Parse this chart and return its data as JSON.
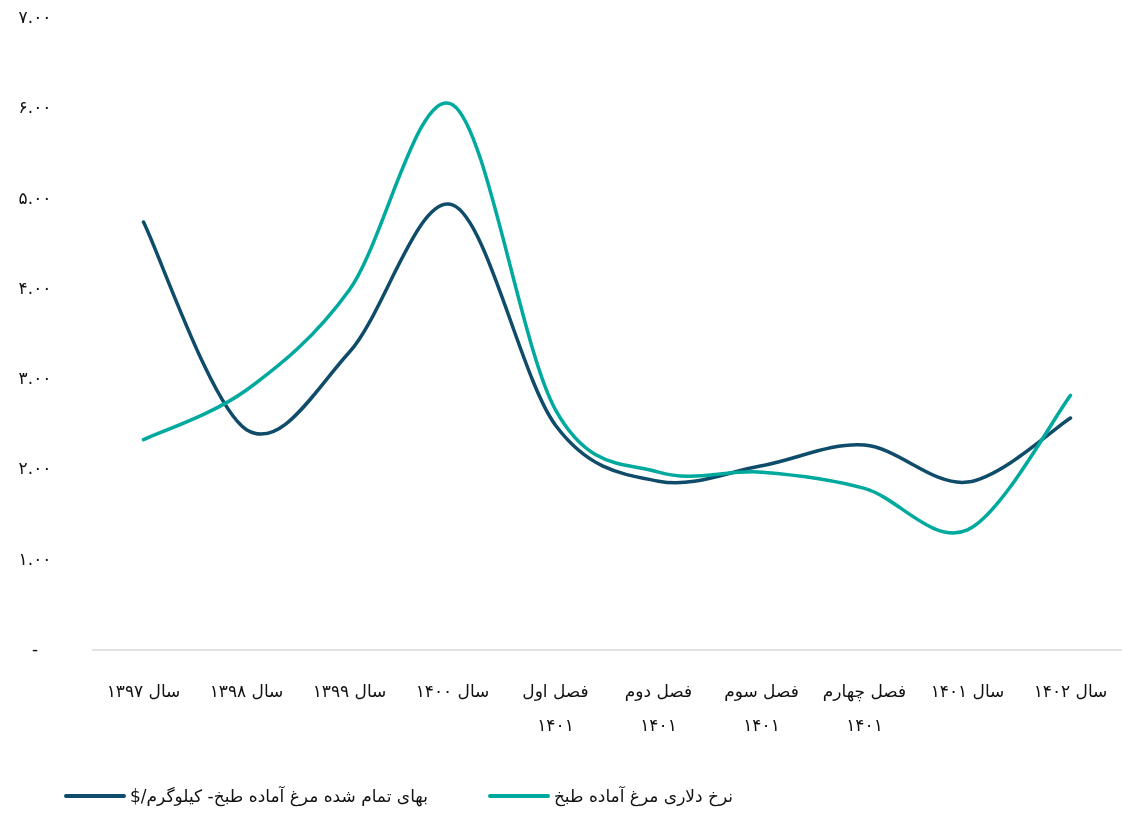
{
  "chart_data": {
    "type": "line",
    "categories": [
      "سال ۱۳۹۷",
      "سال ۱۳۹۸",
      "سال ۱۳۹۹",
      "سال ۱۴۰۰",
      "فصل اول ۱۴۰۱",
      "فصل دوم ۱۴۰۱",
      "فصل سوم ۱۴۰۱",
      "فصل چهارم ۱۴۰۱",
      "سال ۱۴۰۱",
      "سال ۱۴۰۲"
    ],
    "series": [
      {
        "name": "بهای تمام شده مرغ آماده طبخ- کیلوگرم/$",
        "color": "#0e4c6a",
        "values": [
          4.74,
          2.44,
          3.3,
          4.93,
          2.49,
          1.87,
          2.04,
          2.27,
          1.86,
          2.57
        ]
      },
      {
        "name": "نرخ دلاری مرغ آماده طبخ",
        "color": "#00a99d",
        "values": [
          2.33,
          2.88,
          3.99,
          6.04,
          2.66,
          1.97,
          1.97,
          1.79,
          1.33,
          2.82
        ]
      }
    ],
    "ylim": [
      0,
      7
    ],
    "yticks": [
      {
        "value": 0,
        "label": "-"
      },
      {
        "value": 1,
        "label": "۱.۰۰"
      },
      {
        "value": 2,
        "label": "۲.۰۰"
      },
      {
        "value": 3,
        "label": "۳.۰۰"
      },
      {
        "value": 4,
        "label": "۴.۰۰"
      },
      {
        "value": 5,
        "label": "۵.۰۰"
      },
      {
        "value": 6,
        "label": "۶.۰۰"
      },
      {
        "value": 7,
        "label": "۷.۰۰"
      }
    ],
    "legend": "bottom"
  }
}
